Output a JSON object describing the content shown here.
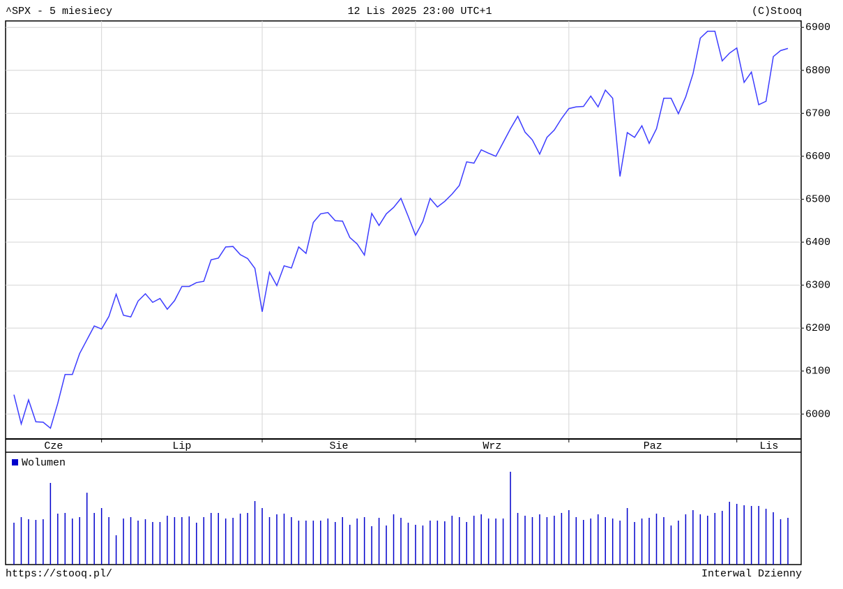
{
  "chart_data": [
    {
      "type": "line",
      "title": "^SPX - 5 miesiecy",
      "subtitle": "12 Lis 2025 23:00 UTC+1",
      "credit": "(C)Stooq",
      "categories": [
        "Cze",
        null,
        null,
        null,
        null,
        null,
        null,
        null,
        null,
        null,
        null,
        null,
        "Lip",
        null,
        null,
        null,
        null,
        null,
        null,
        null,
        null,
        null,
        null,
        null,
        null,
        null,
        null,
        null,
        null,
        null,
        null,
        null,
        null,
        null,
        "Sie",
        null,
        null,
        null,
        null,
        null,
        null,
        null,
        null,
        null,
        null,
        null,
        null,
        null,
        null,
        null,
        null,
        null,
        null,
        null,
        null,
        "Wrz",
        null,
        null,
        null,
        null,
        null,
        null,
        null,
        null,
        null,
        null,
        null,
        null,
        null,
        null,
        null,
        null,
        null,
        null,
        null,
        null,
        "Paz",
        null,
        null,
        null,
        null,
        null,
        null,
        null,
        null,
        null,
        null,
        null,
        null,
        null,
        null,
        null,
        null,
        null,
        null,
        null,
        null,
        null,
        null,
        "Lis",
        null,
        null,
        null,
        null,
        null,
        null,
        null
      ],
      "series": [
        {
          "color": "#3c3cff",
          "values": [
            6045,
            5977,
            6033,
            5982,
            5981,
            5967,
            6025,
            6092,
            6092,
            6141,
            6173,
            6205,
            6198,
            6227,
            6279,
            6230,
            6226,
            6263,
            6280,
            6260,
            6269,
            6244,
            6264,
            6297,
            6297,
            6306,
            6309,
            6359,
            6363,
            6389,
            6390,
            6371,
            6362,
            6339,
            6238,
            6330,
            6299,
            6345,
            6340,
            6389,
            6374,
            6446,
            6466,
            6469,
            6450,
            6449,
            6411,
            6396,
            6370,
            6467,
            6439,
            6466,
            6481,
            6502,
            6460,
            6416,
            6448,
            6502,
            6482,
            6495,
            6512,
            6532,
            6587,
            6584,
            6615,
            6607,
            6600,
            6632,
            6664,
            6693,
            6656,
            6638,
            6605,
            6644,
            6661,
            6688,
            6711,
            6715,
            6716,
            6740,
            6715,
            6754,
            6735,
            6553,
            6655,
            6644,
            6671,
            6630,
            6664,
            6735,
            6735,
            6699,
            6738,
            6792,
            6875,
            6891,
            6891,
            6822,
            6840,
            6852,
            6772,
            6796,
            6720,
            6728,
            6832,
            6846,
            6851
          ]
        }
      ],
      "ylim": [
        5942,
        6915
      ],
      "yticks": [
        6000,
        6100,
        6200,
        6300,
        6400,
        6500,
        6600,
        6700,
        6800,
        6900
      ],
      "grid": true
    },
    {
      "type": "bar",
      "series": [
        {
          "name": "Wolumen",
          "color": "#0000cc",
          "values": [
            60,
            68,
            65,
            64,
            65,
            117,
            73,
            74,
            66,
            68,
            103,
            74,
            81,
            68,
            42,
            66,
            68,
            63,
            65,
            61,
            61,
            70,
            68,
            68,
            69,
            60,
            68,
            74,
            74,
            66,
            67,
            73,
            74,
            91,
            81,
            68,
            72,
            73,
            68,
            63,
            63,
            63,
            63,
            66,
            61,
            68,
            57,
            66,
            68,
            55,
            67,
            56,
            72,
            67,
            60,
            57,
            56,
            63,
            63,
            62,
            70,
            68,
            61,
            70,
            72,
            66,
            66,
            66,
            133,
            74,
            70,
            68,
            72,
            68,
            70,
            74,
            78,
            68,
            64,
            66,
            72,
            68,
            66,
            63,
            81,
            61,
            66,
            67,
            73,
            68,
            56,
            63,
            72,
            78,
            72,
            70,
            74,
            77,
            90,
            87,
            85,
            84,
            84,
            80,
            75,
            65,
            67
          ]
        }
      ],
      "ylim": [
        0,
        161
      ]
    }
  ],
  "footer": {
    "url": "https://stooq.pl/",
    "interval": "Interwal Dzienny"
  }
}
